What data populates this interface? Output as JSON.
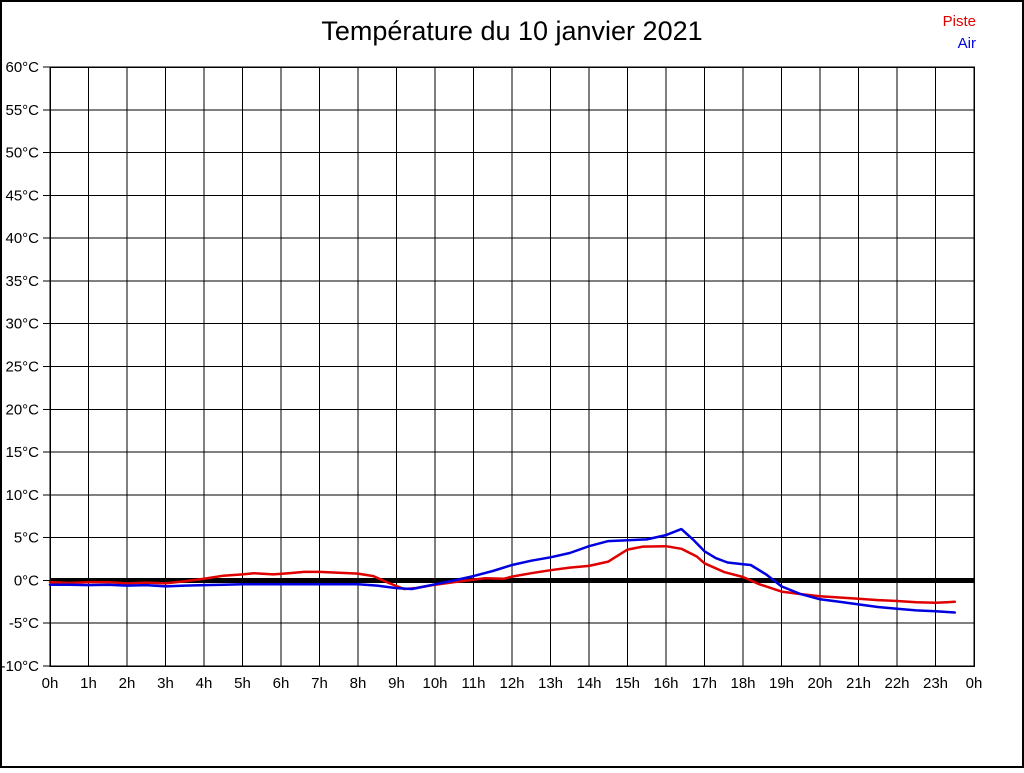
{
  "title": "Température du 10 janvier 2021",
  "chart_data": {
    "type": "line",
    "title": "Température du 10 janvier 2021",
    "xlabel": "",
    "ylabel": "",
    "xlim": [
      0,
      24
    ],
    "ylim": [
      -10,
      60
    ],
    "y_step": 5,
    "grid": true,
    "zero_line_value": 0,
    "legend_position": "top-right",
    "x_tick_labels": [
      "0h",
      "1h",
      "2h",
      "3h",
      "4h",
      "5h",
      "6h",
      "7h",
      "8h",
      "9h",
      "10h",
      "11h",
      "12h",
      "13h",
      "14h",
      "15h",
      "16h",
      "17h",
      "18h",
      "19h",
      "20h",
      "21h",
      "22h",
      "23h",
      "0h"
    ],
    "x_tick_values": [
      0,
      1,
      2,
      3,
      4,
      5,
      6,
      7,
      8,
      9,
      10,
      11,
      12,
      13,
      14,
      15,
      16,
      17,
      18,
      19,
      20,
      21,
      22,
      23,
      24
    ],
    "y_tick_labels": [
      "60°C",
      "55°C",
      "50°C",
      "45°C",
      "40°C",
      "35°C",
      "30°C",
      "25°C",
      "20°C",
      "15°C",
      "10°C",
      "5°C",
      "0°C",
      "-5°C",
      "-10°C"
    ],
    "y_tick_values": [
      60,
      55,
      50,
      45,
      40,
      35,
      30,
      25,
      20,
      15,
      10,
      5,
      0,
      -5,
      -10
    ],
    "series": [
      {
        "name": "Piste",
        "color": "#e00000",
        "points": [
          [
            0,
            -0.2
          ],
          [
            0.5,
            -0.3
          ],
          [
            1,
            -0.2
          ],
          [
            1.5,
            -0.2
          ],
          [
            2,
            -0.35
          ],
          [
            2.5,
            -0.25
          ],
          [
            3,
            -0.35
          ],
          [
            3.5,
            -0.1
          ],
          [
            4,
            0.2
          ],
          [
            4.5,
            0.55
          ],
          [
            5,
            0.7
          ],
          [
            5.3,
            0.85
          ],
          [
            5.8,
            0.7
          ],
          [
            6.2,
            0.85
          ],
          [
            6.6,
            1.0
          ],
          [
            7,
            1.0
          ],
          [
            7.5,
            0.9
          ],
          [
            8,
            0.8
          ],
          [
            8.4,
            0.5
          ],
          [
            8.8,
            -0.3
          ],
          [
            9.2,
            -1.0
          ],
          [
            9.5,
            -0.9
          ],
          [
            10,
            -0.5
          ],
          [
            10.5,
            -0.2
          ],
          [
            11,
            0.1
          ],
          [
            11.3,
            0.25
          ],
          [
            11.8,
            0.2
          ],
          [
            12,
            0.45
          ],
          [
            12.5,
            0.85
          ],
          [
            13,
            1.2
          ],
          [
            13.5,
            1.5
          ],
          [
            14,
            1.7
          ],
          [
            14.5,
            2.2
          ],
          [
            15,
            3.6
          ],
          [
            15.4,
            3.95
          ],
          [
            16,
            4.0
          ],
          [
            16.4,
            3.7
          ],
          [
            16.8,
            2.8
          ],
          [
            17,
            2.0
          ],
          [
            17.5,
            1.0
          ],
          [
            18,
            0.4
          ],
          [
            18.4,
            -0.4
          ],
          [
            19,
            -1.3
          ],
          [
            19.5,
            -1.6
          ],
          [
            20,
            -1.85
          ],
          [
            20.5,
            -2.0
          ],
          [
            21,
            -2.15
          ],
          [
            21.5,
            -2.3
          ],
          [
            22,
            -2.4
          ],
          [
            22.5,
            -2.55
          ],
          [
            23,
            -2.6
          ],
          [
            23.3,
            -2.55
          ],
          [
            23.5,
            -2.5
          ]
        ]
      },
      {
        "name": "Air",
        "color": "#0000e0",
        "points": [
          [
            0,
            -0.5
          ],
          [
            0.5,
            -0.5
          ],
          [
            1,
            -0.55
          ],
          [
            1.5,
            -0.5
          ],
          [
            2,
            -0.6
          ],
          [
            2.5,
            -0.55
          ],
          [
            3,
            -0.7
          ],
          [
            3.5,
            -0.6
          ],
          [
            4,
            -0.55
          ],
          [
            4.5,
            -0.5
          ],
          [
            5,
            -0.45
          ],
          [
            6,
            -0.45
          ],
          [
            7,
            -0.45
          ],
          [
            8,
            -0.45
          ],
          [
            8.5,
            -0.6
          ],
          [
            9,
            -0.9
          ],
          [
            9.4,
            -1.0
          ],
          [
            10,
            -0.45
          ],
          [
            10.5,
            0.0
          ],
          [
            11,
            0.5
          ],
          [
            11.5,
            1.1
          ],
          [
            12,
            1.8
          ],
          [
            12.5,
            2.3
          ],
          [
            13,
            2.7
          ],
          [
            13.5,
            3.2
          ],
          [
            14,
            4.0
          ],
          [
            14.5,
            4.6
          ],
          [
            15,
            4.7
          ],
          [
            15.5,
            4.8
          ],
          [
            16,
            5.3
          ],
          [
            16.4,
            6.0
          ],
          [
            16.7,
            4.8
          ],
          [
            17,
            3.4
          ],
          [
            17.3,
            2.6
          ],
          [
            17.6,
            2.1
          ],
          [
            18,
            1.9
          ],
          [
            18.2,
            1.8
          ],
          [
            18.6,
            0.7
          ],
          [
            19,
            -0.7
          ],
          [
            19.5,
            -1.6
          ],
          [
            20,
            -2.2
          ],
          [
            20.5,
            -2.5
          ],
          [
            21,
            -2.8
          ],
          [
            21.5,
            -3.1
          ],
          [
            22,
            -3.3
          ],
          [
            22.5,
            -3.5
          ],
          [
            23,
            -3.6
          ],
          [
            23.5,
            -3.75
          ]
        ]
      }
    ]
  }
}
